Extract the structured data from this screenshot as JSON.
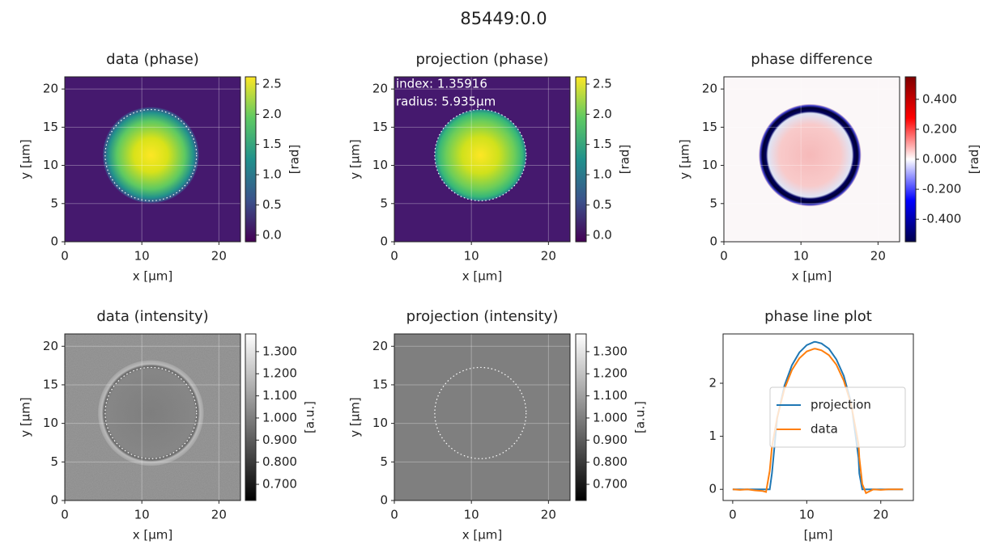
{
  "title": "85449:0.0",
  "chart_data": [
    {
      "type": "image",
      "title": "data (phase)",
      "x_label": "x [µm]",
      "y_label": "y [µm]",
      "xlim": [
        0,
        22.8
      ],
      "ylim": [
        0,
        21.6
      ],
      "xticks": [
        0,
        10,
        20
      ],
      "yticks": [
        0,
        5,
        10,
        15,
        20
      ],
      "grid": true,
      "colorbar": {
        "label": "[rad]",
        "colormap": "viridis",
        "lim": [
          -0.11,
          2.62
        ],
        "ticks": [
          {
            "value": 0,
            "label": "0.0"
          },
          0.5,
          {
            "value": 1,
            "label": "1.0"
          },
          1.5,
          {
            "value": 2,
            "label": "2.0"
          },
          2.5
        ]
      }
    },
    {
      "type": "image",
      "title": "projection (phase)",
      "x_label": "x [µm]",
      "y_label": "y [µm]",
      "xlim": [
        0,
        22.8
      ],
      "ylim": [
        0,
        21.6
      ],
      "xticks": [
        0,
        10,
        20
      ],
      "yticks": [
        0,
        5,
        10,
        15,
        20
      ],
      "grid": true,
      "annotations": [
        "index: 1.35916",
        "radius: 5.935µm"
      ],
      "colorbar": {
        "label": "[rad]",
        "colormap": "viridis",
        "lim": [
          -0.11,
          2.62
        ],
        "ticks": [
          {
            "value": 0,
            "label": "0.0"
          },
          0.5,
          {
            "value": 1,
            "label": "1.0"
          },
          1.5,
          {
            "value": 2,
            "label": "2.0"
          },
          2.5
        ]
      }
    },
    {
      "type": "image",
      "title": "phase difference",
      "x_label": "x [µm]",
      "y_label": "y [µm]",
      "xlim": [
        0,
        22.8
      ],
      "ylim": [
        0,
        21.6
      ],
      "xticks": [
        0,
        10,
        20
      ],
      "yticks": [
        0,
        5,
        10,
        15,
        20
      ],
      "grid": true,
      "colorbar": {
        "label": "[rad]",
        "colormap": "seismic",
        "lim": [
          -0.55,
          0.55
        ],
        "ticks": [
          {
            "value": -0.4,
            "label": "-0.400"
          },
          {
            "value": -0.2,
            "label": "-0.200"
          },
          {
            "value": 0,
            "label": "0.000"
          },
          {
            "value": 0.2,
            "label": "0.200"
          },
          {
            "value": 0.4,
            "label": "0.400"
          }
        ]
      }
    },
    {
      "type": "image",
      "title": "data (intensity)",
      "x_label": "x [µm]",
      "y_label": "y [µm]",
      "xlim": [
        0,
        22.8
      ],
      "ylim": [
        0,
        21.6
      ],
      "xticks": [
        0,
        10,
        20
      ],
      "yticks": [
        0,
        5,
        10,
        15,
        20
      ],
      "grid": true,
      "colorbar": {
        "label": "[a.u.]",
        "colormap": "gray",
        "lim": [
          0.627,
          1.38
        ],
        "ticks": [
          {
            "value": 0.7,
            "label": "0.700"
          },
          {
            "value": 0.8,
            "label": "0.800"
          },
          {
            "value": 0.9,
            "label": "0.900"
          },
          {
            "value": 1.0,
            "label": "1.000"
          },
          {
            "value": 1.1,
            "label": "1.100"
          },
          {
            "value": 1.2,
            "label": "1.200"
          },
          {
            "value": 1.3,
            "label": "1.300"
          }
        ]
      }
    },
    {
      "type": "image",
      "title": "projection (intensity)",
      "x_label": "x [µm]",
      "y_label": "y [µm]",
      "xlim": [
        0,
        22.8
      ],
      "ylim": [
        0,
        21.6
      ],
      "xticks": [
        0,
        10,
        20
      ],
      "yticks": [
        0,
        5,
        10,
        15,
        20
      ],
      "grid": true,
      "colorbar": {
        "label": "[a.u.]",
        "colormap": "gray",
        "lim": [
          0.627,
          1.38
        ],
        "ticks": [
          {
            "value": 0.7,
            "label": "0.700"
          },
          {
            "value": 0.8,
            "label": "0.800"
          },
          {
            "value": 0.9,
            "label": "0.900"
          },
          {
            "value": 1.0,
            "label": "1.000"
          },
          {
            "value": 1.1,
            "label": "1.100"
          },
          {
            "value": 1.2,
            "label": "1.200"
          },
          {
            "value": 1.3,
            "label": "1.300"
          }
        ]
      }
    },
    {
      "type": "line",
      "title": "phase line plot",
      "x_label": "[µm]",
      "xlim": [
        -1.3,
        24.4
      ],
      "ylim": [
        -0.21,
        2.93
      ],
      "xticks": [
        0,
        10,
        20
      ],
      "yticks": [
        0,
        1,
        2
      ],
      "grid": false,
      "legend": "center right",
      "x": [
        0,
        1,
        2,
        3,
        4,
        4.5,
        5,
        5.3,
        6,
        7,
        8,
        9,
        10,
        11,
        11.2,
        12,
        13,
        14,
        15,
        16,
        17,
        17.1,
        17.5,
        18,
        19,
        20,
        21,
        22,
        23
      ],
      "series": [
        {
          "name": "projection",
          "color": "#1f77b4",
          "values": [
            0,
            0,
            0,
            0,
            0,
            0,
            0,
            0.3,
            1.34,
            1.96,
            2.34,
            2.58,
            2.72,
            2.78,
            2.78,
            2.75,
            2.65,
            2.45,
            2.14,
            1.63,
            0.59,
            0.3,
            0,
            0,
            0,
            0,
            0,
            0,
            0
          ]
        },
        {
          "name": "data",
          "color": "#ff7f0e",
          "values": [
            0,
            -0.01,
            0,
            -0.02,
            -0.03,
            -0.05,
            0.35,
            0.8,
            1.35,
            1.9,
            2.25,
            2.47,
            2.6,
            2.65,
            2.65,
            2.62,
            2.53,
            2.35,
            2.05,
            1.6,
            0.85,
            0.6,
            0.1,
            -0.07,
            0,
            -0.01,
            0,
            0,
            0
          ]
        }
      ]
    }
  ]
}
